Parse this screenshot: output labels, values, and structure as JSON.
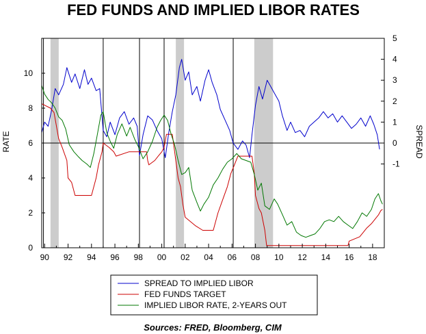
{
  "chart_data": {
    "type": "line",
    "title": "FED FUNDS AND IMPLIED LIBOR RATES",
    "left_axis": {
      "label": "RATE",
      "range": [
        0,
        12
      ],
      "ticks": [
        0,
        2,
        4,
        6,
        8,
        10
      ]
    },
    "right_axis": {
      "label": "SPREAD",
      "range": [
        -5,
        5
      ],
      "ticks": [
        -1,
        0,
        1,
        2,
        3,
        4,
        5
      ]
    },
    "x_axis": {
      "range": [
        1989.75,
        2019.0
      ],
      "ticks": [
        1990,
        1992,
        1994,
        1996,
        1998,
        2000,
        2002,
        2004,
        2006,
        2008,
        2010,
        2012,
        2014,
        2016,
        2018
      ],
      "tick_labels": [
        "90",
        "92",
        "94",
        "96",
        "98",
        "00",
        "02",
        "04",
        "06",
        "08",
        "10",
        "12",
        "14",
        "16",
        "18"
      ]
    },
    "recessions": [
      [
        1990.5,
        1991.2
      ],
      [
        2001.2,
        2001.9
      ],
      [
        2007.9,
        2009.5
      ]
    ],
    "vertical_lines": [
      1989.9,
      1995.0,
      1998.1,
      2000.2,
      2006.1
    ],
    "zero_line": 0,
    "series": [
      {
        "name": "SPREAD TO IMPLIED LIBOR",
        "axis": "right",
        "color": "#0000cc",
        "points": [
          [
            1989.75,
            0.5
          ],
          [
            1990.0,
            1.0
          ],
          [
            1990.3,
            0.8
          ],
          [
            1990.6,
            1.6
          ],
          [
            1990.9,
            2.6
          ],
          [
            1991.2,
            2.3
          ],
          [
            1991.6,
            2.8
          ],
          [
            1991.9,
            3.6
          ],
          [
            1992.3,
            2.9
          ],
          [
            1992.6,
            3.3
          ],
          [
            1993.0,
            2.6
          ],
          [
            1993.4,
            3.5
          ],
          [
            1993.7,
            2.8
          ],
          [
            1994.0,
            3.1
          ],
          [
            1994.4,
            2.5
          ],
          [
            1994.7,
            2.6
          ],
          [
            1995.0,
            0.6
          ],
          [
            1995.3,
            0.3
          ],
          [
            1995.6,
            1.0
          ],
          [
            1996.0,
            0.4
          ],
          [
            1996.4,
            1.2
          ],
          [
            1996.8,
            1.5
          ],
          [
            1997.2,
            0.9
          ],
          [
            1997.6,
            1.2
          ],
          [
            1997.9,
            0.8
          ],
          [
            1998.1,
            -0.6
          ],
          [
            1998.4,
            0.4
          ],
          [
            1998.8,
            1.3
          ],
          [
            1999.2,
            1.1
          ],
          [
            1999.6,
            0.6
          ],
          [
            2000.0,
            0.2
          ],
          [
            2000.3,
            -0.7
          ],
          [
            2000.6,
            0.5
          ],
          [
            2000.9,
            1.5
          ],
          [
            2001.2,
            2.3
          ],
          [
            2001.5,
            3.6
          ],
          [
            2001.7,
            4.0
          ],
          [
            2002.0,
            3.0
          ],
          [
            2002.3,
            3.4
          ],
          [
            2002.6,
            2.3
          ],
          [
            2003.0,
            2.7
          ],
          [
            2003.3,
            2.0
          ],
          [
            2003.7,
            3.0
          ],
          [
            2004.0,
            3.5
          ],
          [
            2004.3,
            2.9
          ],
          [
            2004.7,
            2.3
          ],
          [
            2005.0,
            1.6
          ],
          [
            2005.4,
            1.1
          ],
          [
            2005.8,
            0.6
          ],
          [
            2006.1,
            0.0
          ],
          [
            2006.5,
            -0.3
          ],
          [
            2006.9,
            0.1
          ],
          [
            2007.2,
            -0.1
          ],
          [
            2007.5,
            -0.7
          ],
          [
            2007.7,
            0.4
          ],
          [
            2008.0,
            1.8
          ],
          [
            2008.3,
            2.7
          ],
          [
            2008.6,
            2.1
          ],
          [
            2009.0,
            3.0
          ],
          [
            2009.3,
            2.7
          ],
          [
            2009.6,
            2.4
          ],
          [
            2010.0,
            2.0
          ],
          [
            2010.3,
            1.3
          ],
          [
            2010.7,
            0.6
          ],
          [
            2011.0,
            1.0
          ],
          [
            2011.4,
            0.5
          ],
          [
            2011.8,
            0.6
          ],
          [
            2012.2,
            0.3
          ],
          [
            2012.6,
            0.8
          ],
          [
            2013.0,
            1.0
          ],
          [
            2013.4,
            1.2
          ],
          [
            2013.8,
            1.5
          ],
          [
            2014.2,
            1.2
          ],
          [
            2014.6,
            1.4
          ],
          [
            2015.0,
            1.0
          ],
          [
            2015.4,
            1.3
          ],
          [
            2015.8,
            1.0
          ],
          [
            2016.2,
            0.7
          ],
          [
            2016.6,
            0.9
          ],
          [
            2017.0,
            1.2
          ],
          [
            2017.4,
            0.8
          ],
          [
            2017.8,
            1.3
          ],
          [
            2018.1,
            0.9
          ],
          [
            2018.4,
            0.4
          ],
          [
            2018.6,
            -0.3
          ]
        ]
      },
      {
        "name": "FED FUNDS TARGET",
        "axis": "left",
        "color": "#cc0000",
        "points": [
          [
            1989.75,
            8.25
          ],
          [
            1990.5,
            8.0
          ],
          [
            1990.8,
            7.75
          ],
          [
            1991.0,
            7.0
          ],
          [
            1991.2,
            6.25
          ],
          [
            1991.5,
            5.75
          ],
          [
            1991.9,
            5.0
          ],
          [
            1992.0,
            4.0
          ],
          [
            1992.3,
            3.75
          ],
          [
            1992.6,
            3.0
          ],
          [
            1994.0,
            3.0
          ],
          [
            1994.2,
            3.5
          ],
          [
            1994.4,
            4.0
          ],
          [
            1994.6,
            4.75
          ],
          [
            1994.9,
            5.5
          ],
          [
            1995.0,
            6.0
          ],
          [
            1995.5,
            5.75
          ],
          [
            1995.9,
            5.5
          ],
          [
            1996.1,
            5.25
          ],
          [
            1997.2,
            5.5
          ],
          [
            1998.7,
            5.5
          ],
          [
            1998.8,
            5.0
          ],
          [
            1998.9,
            4.75
          ],
          [
            1999.4,
            5.0
          ],
          [
            1999.7,
            5.25
          ],
          [
            2000.0,
            5.5
          ],
          [
            2000.2,
            5.75
          ],
          [
            2000.4,
            6.5
          ],
          [
            2000.9,
            6.5
          ],
          [
            2001.0,
            6.0
          ],
          [
            2001.2,
            5.0
          ],
          [
            2001.4,
            4.0
          ],
          [
            2001.6,
            3.5
          ],
          [
            2001.8,
            2.5
          ],
          [
            2002.0,
            1.75
          ],
          [
            2002.9,
            1.25
          ],
          [
            2003.5,
            1.0
          ],
          [
            2004.4,
            1.0
          ],
          [
            2004.5,
            1.25
          ],
          [
            2004.8,
            2.0
          ],
          [
            2005.2,
            2.75
          ],
          [
            2005.6,
            3.5
          ],
          [
            2005.9,
            4.25
          ],
          [
            2006.2,
            4.75
          ],
          [
            2006.5,
            5.25
          ],
          [
            2007.7,
            5.25
          ],
          [
            2007.8,
            4.75
          ],
          [
            2007.9,
            4.25
          ],
          [
            2008.0,
            3.0
          ],
          [
            2008.3,
            2.25
          ],
          [
            2008.5,
            2.0
          ],
          [
            2008.8,
            1.0
          ],
          [
            2008.95,
            0.13
          ],
          [
            2015.9,
            0.13
          ],
          [
            2016.0,
            0.38
          ],
          [
            2016.9,
            0.63
          ],
          [
            2017.2,
            0.88
          ],
          [
            2017.5,
            1.13
          ],
          [
            2017.9,
            1.38
          ],
          [
            2018.2,
            1.63
          ],
          [
            2018.5,
            1.88
          ],
          [
            2018.7,
            2.13
          ],
          [
            2018.85,
            2.2
          ]
        ]
      },
      {
        "name": "IMPLIED LIBOR RATE, 2-YEARS OUT",
        "axis": "left",
        "color": "#007700",
        "points": [
          [
            1989.75,
            9.3
          ],
          [
            1990.0,
            8.8
          ],
          [
            1990.3,
            8.5
          ],
          [
            1990.6,
            8.3
          ],
          [
            1990.9,
            8.0
          ],
          [
            1991.2,
            7.5
          ],
          [
            1991.5,
            7.3
          ],
          [
            1991.8,
            6.8
          ],
          [
            1992.1,
            5.9
          ],
          [
            1992.5,
            5.5
          ],
          [
            1992.9,
            5.2
          ],
          [
            1993.2,
            5.0
          ],
          [
            1993.6,
            4.8
          ],
          [
            1993.9,
            4.6
          ],
          [
            1994.2,
            5.4
          ],
          [
            1994.5,
            6.5
          ],
          [
            1994.8,
            7.6
          ],
          [
            1995.0,
            7.8
          ],
          [
            1995.3,
            6.6
          ],
          [
            1995.6,
            6.1
          ],
          [
            1995.9,
            5.7
          ],
          [
            1996.2,
            6.5
          ],
          [
            1996.6,
            7.1
          ],
          [
            1997.0,
            6.4
          ],
          [
            1997.3,
            6.9
          ],
          [
            1997.7,
            6.2
          ],
          [
            1998.0,
            5.8
          ],
          [
            1998.4,
            5.1
          ],
          [
            1998.8,
            5.5
          ],
          [
            1999.2,
            6.1
          ],
          [
            1999.6,
            6.9
          ],
          [
            1999.9,
            7.3
          ],
          [
            2000.2,
            7.6
          ],
          [
            2000.5,
            7.3
          ],
          [
            2000.8,
            6.5
          ],
          [
            2001.1,
            5.9
          ],
          [
            2001.4,
            5.0
          ],
          [
            2001.7,
            4.2
          ],
          [
            2002.0,
            4.3
          ],
          [
            2002.3,
            4.6
          ],
          [
            2002.6,
            3.3
          ],
          [
            2003.0,
            2.6
          ],
          [
            2003.3,
            2.1
          ],
          [
            2003.6,
            2.5
          ],
          [
            2004.0,
            2.9
          ],
          [
            2004.4,
            3.6
          ],
          [
            2004.8,
            4.0
          ],
          [
            2005.2,
            4.5
          ],
          [
            2005.6,
            4.9
          ],
          [
            2006.0,
            5.1
          ],
          [
            2006.4,
            5.4
          ],
          [
            2006.8,
            5.1
          ],
          [
            2007.2,
            5.0
          ],
          [
            2007.6,
            4.9
          ],
          [
            2007.9,
            4.2
          ],
          [
            2008.2,
            3.3
          ],
          [
            2008.5,
            3.7
          ],
          [
            2008.8,
            2.4
          ],
          [
            2009.2,
            2.2
          ],
          [
            2009.6,
            2.8
          ],
          [
            2009.9,
            2.5
          ],
          [
            2010.3,
            1.9
          ],
          [
            2010.7,
            1.3
          ],
          [
            2011.1,
            1.5
          ],
          [
            2011.5,
            0.9
          ],
          [
            2011.9,
            0.7
          ],
          [
            2012.3,
            0.6
          ],
          [
            2012.7,
            0.7
          ],
          [
            2013.1,
            0.8
          ],
          [
            2013.5,
            1.1
          ],
          [
            2013.9,
            1.5
          ],
          [
            2014.3,
            1.6
          ],
          [
            2014.7,
            1.5
          ],
          [
            2015.1,
            1.8
          ],
          [
            2015.5,
            1.5
          ],
          [
            2015.9,
            1.3
          ],
          [
            2016.3,
            1.1
          ],
          [
            2016.7,
            1.5
          ],
          [
            2017.1,
            2.0
          ],
          [
            2017.5,
            1.8
          ],
          [
            2017.9,
            2.2
          ],
          [
            2018.2,
            2.8
          ],
          [
            2018.5,
            3.1
          ],
          [
            2018.7,
            2.7
          ],
          [
            2018.85,
            2.5
          ]
        ]
      }
    ],
    "source_text": "Sources:  FRED, Bloomberg, CIM"
  }
}
